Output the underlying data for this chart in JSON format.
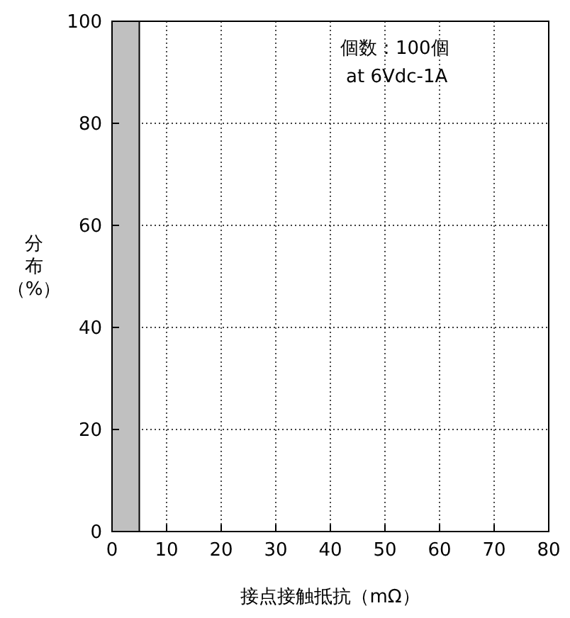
{
  "chart_data": {
    "type": "histogram",
    "bins": [
      0,
      5
    ],
    "values": [
      100
    ],
    "color": "#c0c0c0",
    "xlim": [
      0,
      80
    ],
    "xticks": [
      0,
      10,
      20,
      30,
      40,
      50,
      60,
      70,
      80
    ],
    "ylim": [
      0,
      100
    ],
    "yticks": [
      0,
      20,
      40,
      60,
      80,
      100
    ],
    "grid": true,
    "xlabel": "接点接触抵抗（mΩ）",
    "ylabel": "分布（%）",
    "annotations": [
      "個数：100個",
      "at 6Vdc-1A"
    ]
  }
}
